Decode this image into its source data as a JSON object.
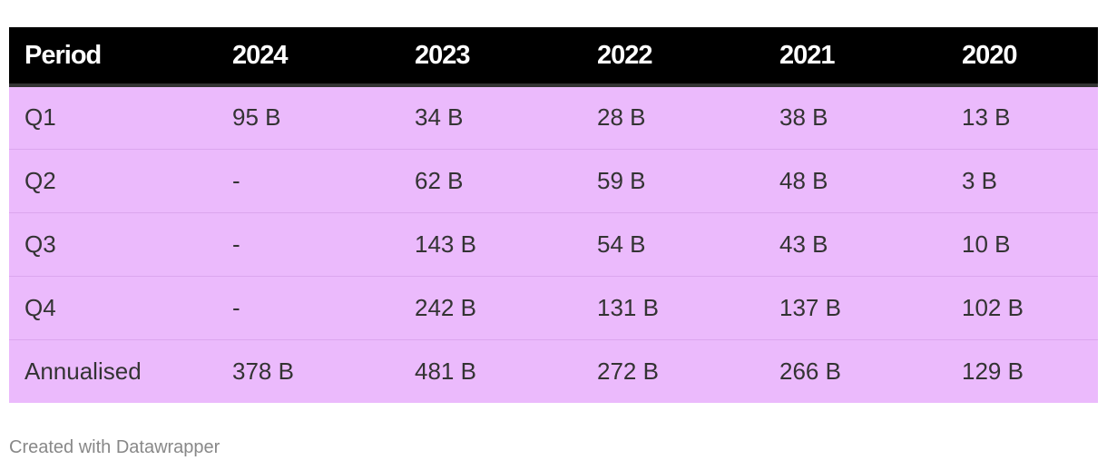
{
  "chart_data": {
    "type": "table",
    "columns": [
      "Period",
      "2024",
      "2023",
      "2022",
      "2021",
      "2020"
    ],
    "rows": [
      [
        "Q1",
        "95 B",
        "34 B",
        "28 B",
        "38 B",
        "13 B"
      ],
      [
        "Q2",
        "-",
        "62 B",
        "59 B",
        "48 B",
        "3 B"
      ],
      [
        "Q3",
        "-",
        "143 B",
        "54 B",
        "43 B",
        "10 B"
      ],
      [
        "Q4",
        "-",
        "242 B",
        "131 B",
        "137 B",
        "102 B"
      ],
      [
        "Annualised",
        "378 B",
        "481 B",
        "272 B",
        "266 B",
        "129 B"
      ]
    ],
    "header_bg": "#000000",
    "header_fg": "#ffffff",
    "row_bg": "#ebbafc"
  },
  "footer": {
    "credit": "Created with Datawrapper"
  }
}
